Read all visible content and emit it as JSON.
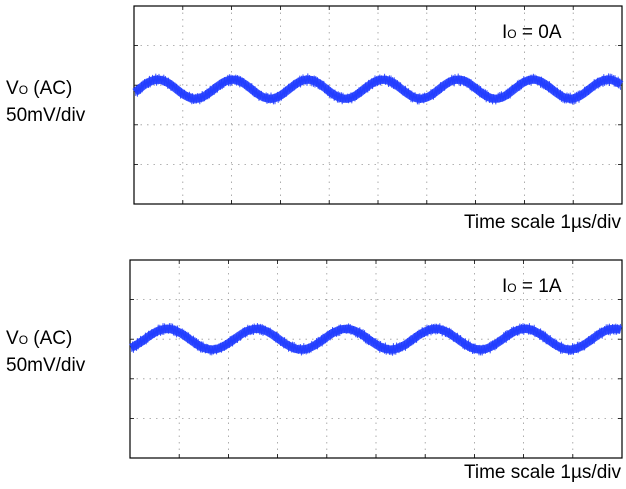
{
  "chart_data": [
    {
      "type": "line",
      "annotation": {
        "label": "I",
        "sub": "O",
        "value": " = 0A"
      },
      "ylabel": {
        "line1_main": "V",
        "line1_sub": "O",
        "line1_rest": " (AC)",
        "line2": "50mV/div"
      },
      "xlabel": "Time scale 1µs/div",
      "grid": true,
      "divisions": {
        "x": 10,
        "y": 5
      },
      "series": [
        {
          "color": "#1f3bff",
          "waveform": "sine",
          "cycles": 6.5,
          "phase_div": 0.1,
          "amplitude_mv": 12,
          "offset_div_from_top": 2.1,
          "noise_band_mv": 16
        }
      ]
    },
    {
      "type": "line",
      "annotation": {
        "label": "I",
        "sub": "O",
        "value": " = 1A"
      },
      "ylabel": {
        "line1_main": "V",
        "line1_sub": "O",
        "line1_rest": " (AC)",
        "line2": "50mV/div"
      },
      "xlabel": "Time scale 1µs/div",
      "grid": true,
      "divisions": {
        "x": 10,
        "y": 5
      },
      "series": [
        {
          "color": "#1f3bff",
          "waveform": "sine",
          "cycles": 5.5,
          "phase_div": 0.3,
          "amplitude_mv": 13,
          "offset_div_from_top": 2.0,
          "noise_band_mv": 16
        }
      ]
    }
  ]
}
